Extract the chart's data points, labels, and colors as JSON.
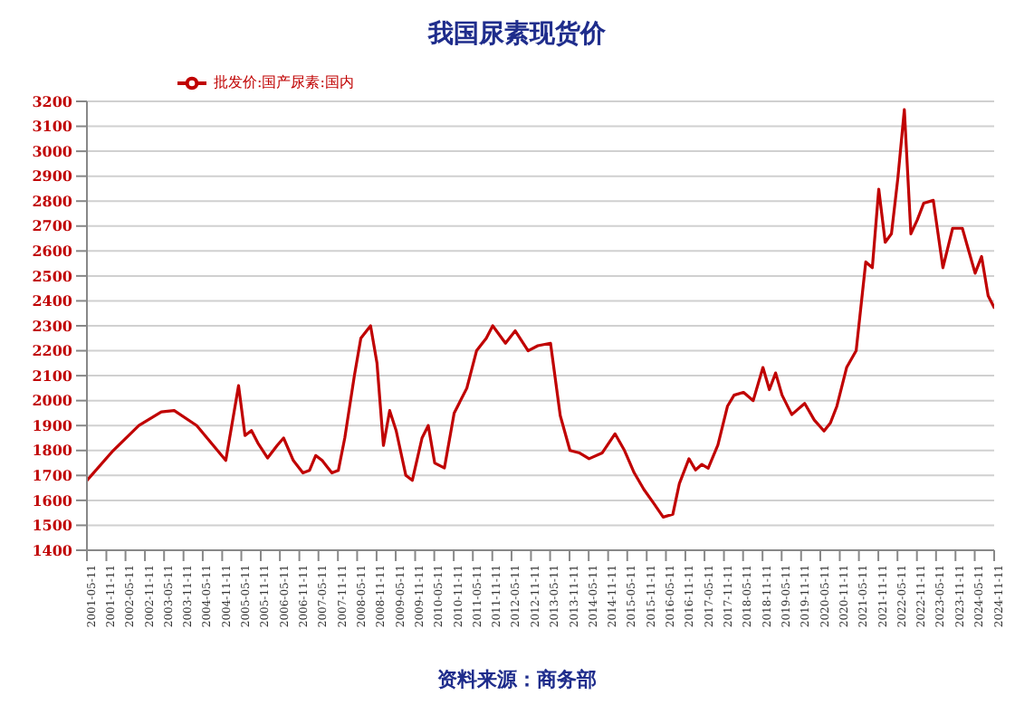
{
  "chart_data": {
    "type": "line",
    "title": "我国尿素现货价",
    "annotations": [
      "资料来源：商务部"
    ],
    "x": [
      "2001-05-11",
      "2002-01",
      "2002-09",
      "2003-04",
      "2003-08",
      "2004-03",
      "2004-12",
      "2005-04",
      "2005-06",
      "2005-08",
      "2005-10",
      "2006-01",
      "2006-04",
      "2006-06",
      "2006-09",
      "2006-12",
      "2007-02",
      "2007-04",
      "2007-06",
      "2007-09",
      "2007-11",
      "2008-01",
      "2008-04",
      "2008-06",
      "2008-09",
      "2008-11",
      "2009-01",
      "2009-03",
      "2009-05",
      "2009-08",
      "2009-10",
      "2010-01",
      "2010-03",
      "2010-05",
      "2010-08",
      "2010-11",
      "2011-03",
      "2011-06",
      "2011-09",
      "2011-11",
      "2012-03",
      "2012-06",
      "2012-10",
      "2013-01",
      "2013-05",
      "2013-08",
      "2013-11",
      "2014-02",
      "2014-05",
      "2014-09",
      "2015-01",
      "2015-04",
      "2015-07",
      "2015-10",
      "2016-01",
      "2016-04",
      "2016-07",
      "2016-09",
      "2016-12",
      "2017-02",
      "2017-04",
      "2017-06",
      "2017-09",
      "2017-12",
      "2018-02",
      "2018-05",
      "2018-08",
      "2018-11",
      "2019-01",
      "2019-03",
      "2019-05",
      "2019-08",
      "2019-12",
      "2020-03",
      "2020-06",
      "2020-08",
      "2020-10",
      "2021-01",
      "2021-04",
      "2021-07",
      "2021-09",
      "2021-11",
      "2022-01",
      "2022-03",
      "2022-05",
      "2022-07",
      "2022-09",
      "2022-11",
      "2023-01",
      "2023-04",
      "2023-07",
      "2023-10",
      "2024-01",
      "2024-03",
      "2024-05",
      "2024-07",
      "2024-09",
      "2024-11"
    ],
    "series": [
      {
        "name": "批发价:国产尿素:国内",
        "color": "#c00000",
        "values": [
          1680,
          1800,
          1900,
          1955,
          1960,
          1900,
          1760,
          2060,
          1860,
          1880,
          1830,
          1770,
          1820,
          1850,
          1760,
          1710,
          1720,
          1780,
          1760,
          1710,
          1720,
          1850,
          2100,
          2250,
          2300,
          2150,
          1820,
          1960,
          1880,
          1700,
          1680,
          1850,
          1900,
          1750,
          1730,
          1950,
          2050,
          2200,
          2250,
          2300,
          2230,
          2280,
          2200,
          2220,
          2230,
          1940,
          1800,
          1790,
          1767,
          1790,
          1867,
          1800,
          1711,
          1644,
          1589,
          1533,
          1544,
          1667,
          1767,
          1722,
          1744,
          1729,
          1822,
          1978,
          2022,
          2033,
          2000,
          2133,
          2044,
          2111,
          2022,
          1944,
          1989,
          1922,
          1878,
          1911,
          1978,
          2133,
          2200,
          2556,
          2533,
          2848,
          2635,
          2669,
          2893,
          3167,
          2669,
          2725,
          2792,
          2803,
          2533,
          2691,
          2691,
          2601,
          2511,
          2578,
          2421,
          2370
        ]
      }
    ],
    "legend": "top left",
    "ylim": [
      1400,
      3200
    ],
    "yticks": [
      1400,
      1500,
      1600,
      1700,
      1800,
      1900,
      2000,
      2100,
      2200,
      2300,
      2400,
      2500,
      2600,
      2700,
      2800,
      2900,
      3000,
      3100,
      3200
    ],
    "xlim": [
      "2001-05-11",
      "2024-11-11"
    ],
    "xticks": [
      "2001-05-11",
      "2001-11-11",
      "2002-05-11",
      "2002-11-11",
      "2003-05-11",
      "2003-11-11",
      "2004-05-11",
      "2004-11-11",
      "2005-05-11",
      "2005-11-11",
      "2006-05-11",
      "2006-11-11",
      "2007-05-11",
      "2007-11-11",
      "2008-05-11",
      "2008-11-11",
      "2009-05-11",
      "2009-11-11",
      "2010-05-11",
      "2010-11-11",
      "2011-05-11",
      "2011-11-11",
      "2012-05-11",
      "2012-11-11",
      "2013-05-11",
      "2013-11-11",
      "2014-05-11",
      "2014-11-11",
      "2015-05-11",
      "2015-11-11",
      "2016-05-11",
      "2016-11-11",
      "2017-05-11",
      "2017-11-11",
      "2018-05-11",
      "2018-11-11",
      "2019-05-11",
      "2019-11-11",
      "2020-05-11",
      "2020-11-11",
      "2021-05-11",
      "2021-11-11",
      "2022-05-11",
      "2022-11-11",
      "2023-05-11",
      "2023-11-11",
      "2024-05-11",
      "2024-11-11"
    ],
    "grid": "y",
    "marker": "none",
    "line_style": "solid"
  }
}
